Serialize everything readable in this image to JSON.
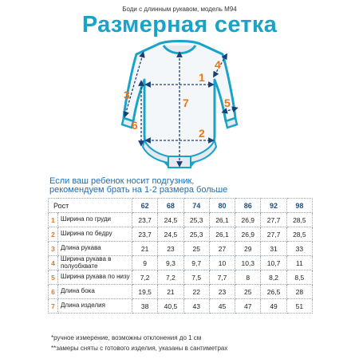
{
  "header": {
    "subtitle": "Боди с длинным рукавом, модель М94",
    "title": "Размерная сетка"
  },
  "diagram": {
    "labels": [
      "1",
      "2",
      "3",
      "4",
      "5",
      "6",
      "7"
    ],
    "colors": {
      "outline": "#1aa3c9",
      "fill": "#e6eaee",
      "numbers": "#e8771a",
      "arrows": "#1a3f78"
    }
  },
  "note": {
    "line1": "Если ваш ребенок носит подгузник,",
    "line2": "рекомендуем брать на  1-2 размера больше"
  },
  "table": {
    "header_label": "Рост",
    "sizes": [
      "62",
      "68",
      "74",
      "80",
      "86",
      "92",
      "98"
    ],
    "rows": [
      {
        "num": "1",
        "label": "Ширина по груди",
        "values": [
          "23,7",
          "24,5",
          "25,3",
          "26,1",
          "26,9",
          "27,7",
          "28,5"
        ]
      },
      {
        "num": "2",
        "label": "Ширина по бедру",
        "values": [
          "23,7",
          "24,5",
          "25,3",
          "26,1",
          "26,9",
          "27,7",
          "28,5"
        ]
      },
      {
        "num": "3",
        "label": "Длина рукава",
        "values": [
          "21",
          "23",
          "25",
          "27",
          "29",
          "31",
          "33"
        ]
      },
      {
        "num": "4",
        "label": "Ширина рукава в полуобхвате",
        "values": [
          "9",
          "9,3",
          "9,7",
          "10",
          "10,3",
          "10,7",
          "11"
        ]
      },
      {
        "num": "5",
        "label": "Ширина рукава по низу",
        "values": [
          "7,2",
          "7,2",
          "7,5",
          "7,7",
          "8",
          "8,2",
          "8,5"
        ]
      },
      {
        "num": "6",
        "label": "Длина бока",
        "values": [
          "19,5",
          "21",
          "22",
          "23",
          "25",
          "26,5",
          "28"
        ]
      },
      {
        "num": "7",
        "label": "Длина изделия",
        "values": [
          "38",
          "40,5",
          "43",
          "45",
          "47",
          "49",
          "51"
        ]
      }
    ]
  },
  "footnotes": {
    "line1": "*ручное измерение, возможны отклонения до 1 см",
    "line2": "**замеры сняты с готового изделия, указаны в сантиметрах"
  }
}
